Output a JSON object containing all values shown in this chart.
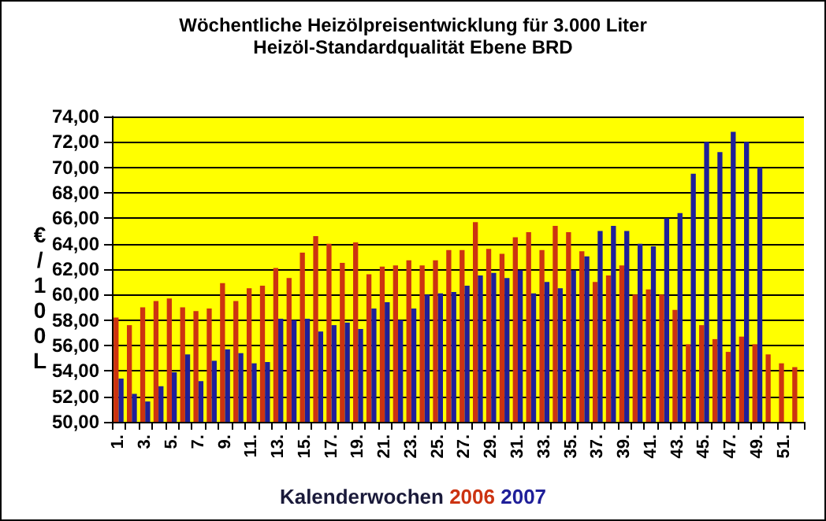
{
  "chart_data": {
    "type": "bar",
    "title": "Wöchentliche Heizölpreisentwicklung für 3.000 Liter",
    "subtitle": "Heizöl-Standardqualität Ebene BRD",
    "xlabel": "Kalenderwochen",
    "ylabel": "€/100L",
    "categories": [
      "1.",
      null,
      "3.",
      null,
      "5.",
      null,
      "7.",
      null,
      "9.",
      null,
      "11.",
      null,
      "13.",
      null,
      "15.",
      null,
      "17.",
      null,
      "19.",
      null,
      "21.",
      null,
      "23.",
      null,
      "25.",
      null,
      "27.",
      null,
      "29.",
      null,
      "31.",
      null,
      "33.",
      null,
      "35.",
      null,
      "37.",
      null,
      "39.",
      null,
      "41.",
      null,
      "43.",
      null,
      "45.",
      null,
      "47.",
      null,
      "49.",
      null,
      "51.",
      null
    ],
    "series": [
      {
        "name": "2006",
        "color": "#cc3311",
        "values": [
          58.2,
          57.6,
          59.0,
          59.5,
          59.7,
          59.0,
          58.7,
          58.9,
          60.9,
          59.5,
          60.5,
          60.7,
          62.1,
          61.3,
          63.3,
          64.6,
          64.0,
          62.5,
          64.1,
          61.6,
          62.2,
          62.3,
          62.7,
          62.3,
          62.7,
          63.5,
          63.5,
          65.7,
          63.6,
          63.2,
          64.5,
          64.9,
          63.5,
          65.4,
          64.9,
          63.4,
          61.0,
          61.5,
          62.3,
          60.0,
          60.4,
          60.0,
          58.8,
          56.1,
          57.6,
          56.5,
          55.5,
          56.7,
          56.1,
          55.3,
          54.6,
          54.3
        ]
      },
      {
        "name": "2007",
        "color": "#1f1f99",
        "values": [
          53.4,
          52.2,
          51.6,
          52.8,
          53.9,
          55.3,
          53.2,
          54.8,
          55.7,
          55.4,
          54.6,
          54.7,
          58.1,
          58.0,
          58.1,
          57.1,
          57.6,
          57.8,
          57.3,
          58.9,
          59.4,
          58.0,
          58.9,
          60.0,
          60.1,
          60.2,
          60.7,
          61.5,
          61.7,
          61.3,
          61.9,
          60.1,
          61.0,
          60.5,
          61.9,
          63.0,
          65.0,
          65.4,
          65.0,
          64.0,
          63.8,
          66.0,
          66.4,
          69.5,
          72.0,
          71.2,
          72.8,
          72.0,
          70.0,
          null,
          null,
          null
        ]
      }
    ],
    "ylim": [
      50,
      74
    ],
    "yticks": [
      {
        "value": 50,
        "label": "50,00"
      },
      {
        "value": 52,
        "label": "52,00"
      },
      {
        "value": 54,
        "label": "54,00"
      },
      {
        "value": 56,
        "label": "56,00"
      },
      {
        "value": 58,
        "label": "58,00"
      },
      {
        "value": 60,
        "label": "60,00"
      },
      {
        "value": 62,
        "label": "62,00"
      },
      {
        "value": 64,
        "label": "64,00"
      },
      {
        "value": 66,
        "label": "66,00"
      },
      {
        "value": 68,
        "label": "68,00"
      },
      {
        "value": 70,
        "label": "70,00"
      },
      {
        "value": 72,
        "label": "72,00"
      },
      {
        "value": 74,
        "label": "74,00"
      }
    ],
    "grid": "y",
    "legend": "bottom"
  }
}
